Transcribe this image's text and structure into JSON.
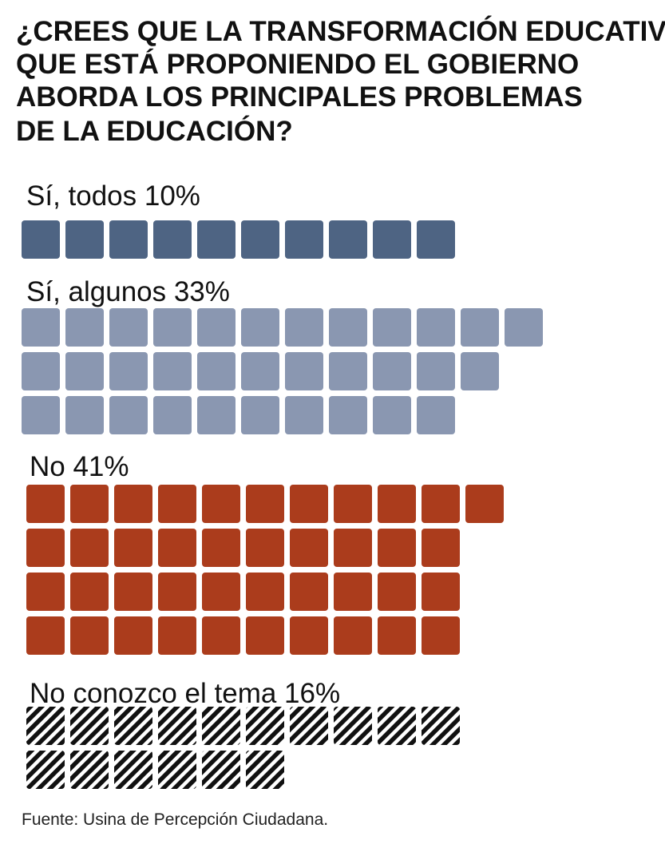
{
  "chart_data": {
    "type": "waffle",
    "title": "¿CREES QUE LA TRANSFORMACIÓN EDUCATIVA QUE ESTÁ PROPONIENDO EL GOBIERNO ABORDA LOS PRINCIPALES PROBLEMAS DE LA EDUCACIÓN?",
    "title_lines": [
      "¿CREES QUE LA TRANSFORMACIÓN EDUCATIVA",
      "QUE ESTÁ PROPONIENDO EL GOBIERNO",
      "ABORDA LOS PRINCIPALES PROBLEMAS",
      "DE LA EDUCACIÓN?"
    ],
    "unit": "%",
    "categories": [
      {
        "label": "Sí, todos",
        "value": 10,
        "color": "#4e6483",
        "pattern": "solid",
        "rows": [
          10
        ]
      },
      {
        "label": "Sí, algunos",
        "value": 33,
        "color": "#8a97b1",
        "pattern": "solid",
        "rows": [
          12,
          11,
          10
        ]
      },
      {
        "label": "No",
        "value": 41,
        "color": "#ab3c1c",
        "pattern": "solid",
        "rows": [
          11,
          10,
          10,
          10
        ]
      },
      {
        "label": "No conozco el tema",
        "value": 16,
        "color": "#111111",
        "pattern": "diagonal-stripes",
        "rows": [
          10,
          6
        ]
      }
    ],
    "source": "Fuente: Usina de Percepción Ciudadana."
  }
}
